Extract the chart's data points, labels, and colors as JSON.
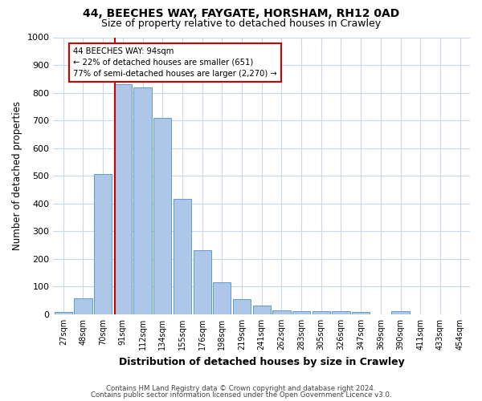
{
  "title1": "44, BEECHES WAY, FAYGATE, HORSHAM, RH12 0AD",
  "title2": "Size of property relative to detached houses in Crawley",
  "xlabel": "Distribution of detached houses by size in Crawley",
  "ylabel": "Number of detached properties",
  "footnote1": "Contains HM Land Registry data © Crown copyright and database right 2024.",
  "footnote2": "Contains public sector information licensed under the Open Government Licence v3.0.",
  "annotation_line1": "44 BEECHES WAY: 94sqm",
  "annotation_line2": "← 22% of detached houses are smaller (651)",
  "annotation_line3": "77% of semi-detached houses are larger (2,270) →",
  "bin_labels": [
    "27sqm",
    "48sqm",
    "70sqm",
    "91sqm",
    "112sqm",
    "134sqm",
    "155sqm",
    "176sqm",
    "198sqm",
    "219sqm",
    "241sqm",
    "262sqm",
    "283sqm",
    "305sqm",
    "326sqm",
    "347sqm",
    "369sqm",
    "390sqm",
    "411sqm",
    "433sqm",
    "454sqm"
  ],
  "bin_values": [
    8,
    58,
    505,
    830,
    820,
    710,
    418,
    230,
    117,
    55,
    32,
    15,
    12,
    10,
    12,
    8,
    0,
    10,
    0,
    0,
    0
  ],
  "bar_color": "#aec6e8",
  "bar_edge_color": "#5b9bd5",
  "vline_color": "#cc0000",
  "vline_x": 2.64,
  "ylim": [
    0,
    1000
  ],
  "yticks": [
    0,
    100,
    200,
    300,
    400,
    500,
    600,
    700,
    800,
    900,
    1000
  ],
  "annotation_box_color": "#cc0000",
  "annotation_text_color": "#000000",
  "background_color": "#ffffff",
  "grid_color": "#c8d8e8"
}
